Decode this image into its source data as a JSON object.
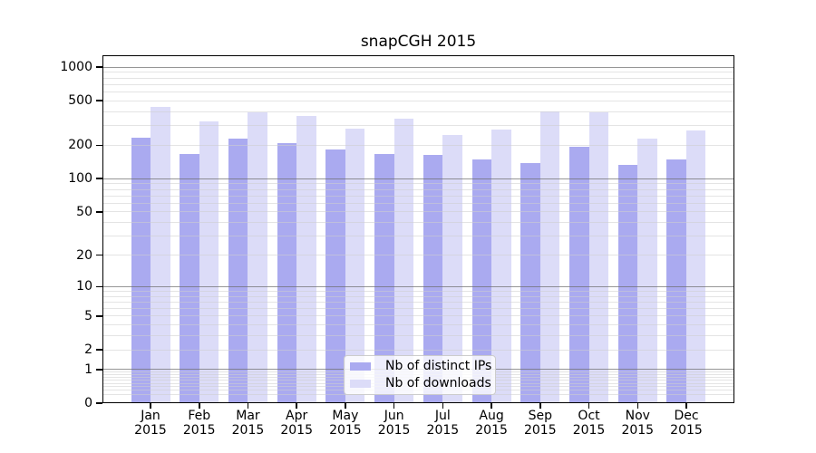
{
  "page": {
    "background": "#ffffff"
  },
  "chart_data": {
    "type": "bar",
    "subtype": "grouped",
    "title": "snapCGH 2015",
    "xlabel": "",
    "ylabel": "",
    "categories": [
      "Jan 2015",
      "Feb 2015",
      "Mar 2015",
      "Apr 2015",
      "May 2015",
      "Jun 2015",
      "Jul 2015",
      "Aug 2015",
      "Sep 2015",
      "Oct 2015",
      "Nov 2015",
      "Dec 2015"
    ],
    "series": [
      {
        "name": "Nb of distinct IPs",
        "color": "#aaaaf0",
        "values": [
          233,
          167,
          229,
          207,
          183,
          166,
          164,
          148,
          138,
          192,
          133,
          148
        ]
      },
      {
        "name": "Nb of downloads",
        "color": "#dcdcf8",
        "values": [
          437,
          325,
          393,
          363,
          279,
          347,
          245,
          274,
          398,
          393,
          230,
          269
        ]
      }
    ],
    "y_ticks": [
      0,
      1,
      2,
      5,
      10,
      20,
      50,
      100,
      200,
      500,
      1000
    ],
    "y_scale": "log10(value+1)",
    "ylim": [
      0,
      1250
    ],
    "grid": true,
    "gridline_major_values": [
      1,
      10,
      100,
      1000
    ],
    "legend_position": "bottom-center",
    "colors": {
      "frame": "#000000",
      "major_gridline": "#9a9a9a",
      "minor_gridline": "#ebebeb",
      "background": "#ffffff"
    }
  }
}
